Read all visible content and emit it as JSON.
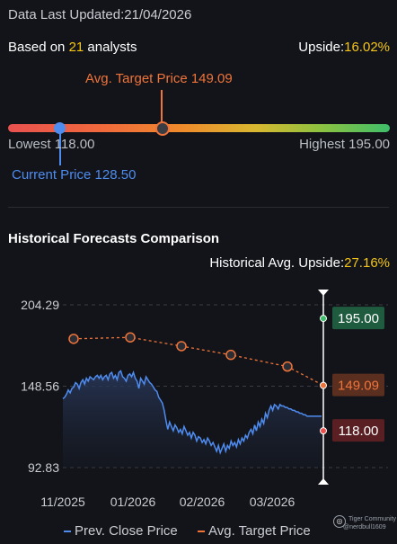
{
  "header": {
    "updated_label": "Data Last Updated:",
    "updated_date": "21/04/2026",
    "based_on_prefix": "Based on ",
    "analyst_count": "21",
    "based_on_suffix": " analysts",
    "upside_label": "Upside:",
    "upside_value": "16.02%"
  },
  "range": {
    "avg_target_label": "Avg. Target Price 149.09",
    "lowest_label": "Lowest 118.00",
    "highest_label": "Highest 195.00",
    "current_label": "Current Price 128.50",
    "low": 118.0,
    "high": 195.0,
    "current": 128.5,
    "avg_target": 149.09,
    "colors": {
      "current": "#4f8cf0",
      "avg_target": "#f0743a"
    }
  },
  "historical": {
    "title": "Historical Forecasts Comparison",
    "upside_label": "Historical Avg. Upside:",
    "upside_value": "27.16%"
  },
  "chart_data": {
    "type": "line",
    "y_ticks": [
      "204.29",
      "148.56",
      "92.83"
    ],
    "x_ticks": [
      "11/2025",
      "01/2026",
      "02/2026",
      "03/2026"
    ],
    "ylim": [
      92.83,
      204.29
    ],
    "series": [
      {
        "name": "Prev. Close Price",
        "color": "#4f8cf0",
        "x": [
          0,
          1,
          2,
          3,
          4,
          5,
          6,
          7,
          8,
          9,
          10,
          11,
          12,
          13,
          14,
          15,
          16,
          17,
          18,
          19,
          20,
          21,
          22,
          23,
          24,
          25,
          26,
          27,
          28,
          29,
          30,
          31,
          32,
          33,
          34,
          35,
          36,
          37,
          38,
          39,
          40,
          41,
          42,
          43,
          44,
          45,
          46,
          47,
          48,
          49,
          50,
          51,
          52,
          53,
          54,
          55,
          56,
          57,
          58,
          59,
          60,
          61,
          62,
          63,
          64,
          65,
          66,
          67,
          68,
          69,
          70,
          71,
          72,
          73,
          74,
          75,
          76,
          77,
          78,
          79,
          80,
          81,
          82,
          83,
          84,
          85,
          86,
          87,
          88,
          89,
          90,
          91,
          92,
          93,
          94,
          95,
          96,
          97,
          98,
          99,
          100,
          101,
          102,
          103,
          104,
          105,
          106,
          107,
          108,
          109,
          110,
          111,
          112,
          113,
          114,
          115,
          116,
          117,
          118,
          119,
          120,
          121,
          122,
          123,
          124,
          125,
          126,
          127,
          128,
          129,
          130,
          131,
          132,
          133,
          134,
          135,
          136,
          137,
          138,
          139,
          140,
          141,
          142,
          143
        ],
        "values": [
          140,
          141,
          143,
          146,
          144,
          147,
          148,
          151,
          150,
          147,
          151,
          153,
          150,
          154,
          152,
          155,
          154,
          153,
          155,
          156,
          154,
          156,
          153,
          155,
          156,
          153,
          157,
          158,
          154,
          156,
          153,
          158,
          159,
          155,
          154,
          152,
          156,
          157,
          155,
          158,
          154,
          152,
          147,
          154,
          152,
          150,
          155,
          153,
          151,
          150,
          148,
          146,
          145,
          141,
          139,
          137,
          132,
          125,
          119,
          124,
          121,
          118,
          122,
          120,
          117,
          119,
          116,
          121,
          118,
          115,
          117,
          113,
          117,
          115,
          111,
          114,
          113,
          110,
          112,
          109,
          113,
          111,
          108,
          110,
          107,
          104,
          108,
          103,
          106,
          109,
          104,
          108,
          106,
          111,
          108,
          110,
          107,
          112,
          109,
          113,
          111,
          115,
          113,
          117,
          119,
          116,
          122,
          118,
          124,
          121,
          126,
          123,
          130,
          127,
          132,
          135,
          132,
          136,
          135,
          133,
          136,
          135,
          135,
          134,
          134,
          133,
          133,
          132,
          132,
          131,
          131,
          130,
          130,
          129,
          129,
          128,
          128,
          128,
          128,
          128,
          128,
          128,
          128,
          128
        ],
        "note": "daily close over the window"
      },
      {
        "name": "Avg. Target Price",
        "color": "#f0743a",
        "points": [
          {
            "x": "11/2025",
            "y": 181
          },
          {
            "x": "12/2025",
            "y": 182
          },
          {
            "x": "01/2026",
            "y": 176
          },
          {
            "x": "02/2026",
            "y": 170
          },
          {
            "x": "03/2026",
            "y": 162
          },
          {
            "x": "04/2026",
            "y": 149.09
          }
        ]
      }
    ],
    "markers": [
      {
        "label": "195.00",
        "value": 195.0,
        "color": "#1f5c3f",
        "dot": "#3fbe6a"
      },
      {
        "label": "149.09",
        "value": 149.09,
        "color": "#5a2f1f",
        "dot": "#f0743a",
        "text_color": "#f0743a"
      },
      {
        "label": "118.00",
        "value": 118.0,
        "color": "#5a1f22",
        "dot": "#e9514f"
      }
    ],
    "grid": "dashed-horizontal",
    "legend": "bottom-center"
  },
  "legend": {
    "close_label": "Prev. Close Price",
    "target_label": "Avg. Target Price"
  },
  "watermark": {
    "line1": "Tiger Community",
    "line2": "@nerdbull1609"
  }
}
